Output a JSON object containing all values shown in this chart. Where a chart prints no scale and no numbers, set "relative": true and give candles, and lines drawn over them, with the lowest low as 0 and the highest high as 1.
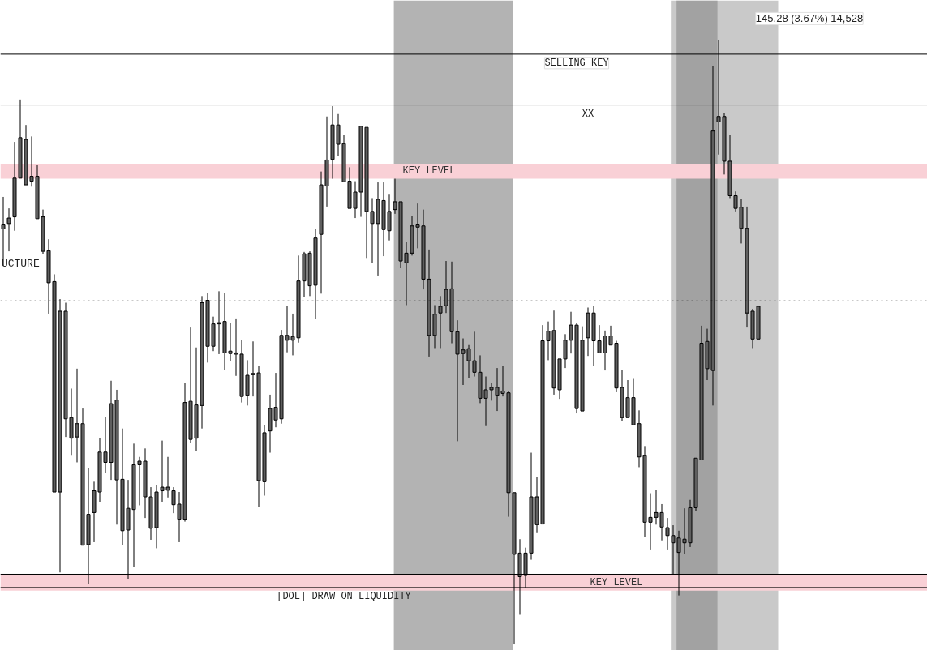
{
  "chart_data": {
    "type": "candlestick",
    "relative": true,
    "color": "#5f5f5f",
    "categories": [
      null,
      null,
      null,
      null,
      null,
      null,
      null,
      null,
      null,
      null,
      null,
      null,
      null,
      null,
      null,
      null,
      null,
      null,
      null,
      null,
      null,
      null,
      null,
      null,
      null,
      null,
      null,
      null,
      null,
      null,
      null,
      null,
      null,
      null,
      null,
      null,
      null,
      null,
      null,
      null,
      null,
      null,
      null,
      null,
      null,
      null,
      null,
      null,
      null,
      null,
      null,
      null,
      null,
      null,
      null,
      null,
      null,
      null,
      null,
      null,
      null,
      null,
      null,
      null,
      null,
      null,
      null,
      null,
      null,
      null,
      null,
      null,
      null,
      null,
      null,
      null,
      null,
      null,
      null,
      null,
      null,
      null,
      null,
      null,
      null,
      null,
      null,
      null,
      null,
      null,
      null,
      null,
      null,
      null,
      null,
      null,
      null,
      null,
      null,
      null,
      null,
      null,
      null,
      null,
      null,
      null,
      null,
      null,
      null,
      null,
      null,
      null,
      null,
      null,
      null,
      null,
      null,
      null,
      null,
      null,
      null,
      null,
      null,
      null,
      null,
      null,
      null,
      null,
      null,
      null,
      null,
      null,
      null,
      null
    ],
    "ohlc": [
      [
        0.695,
        0.74,
        0.626,
        0.687
      ],
      [
        0.705,
        0.721,
        0.65,
        0.696
      ],
      [
        0.771,
        0.831,
        0.684,
        0.707
      ],
      [
        0.838,
        0.901,
        0.771,
        0.771
      ],
      [
        0.835,
        0.859,
        0.758,
        0.76
      ],
      [
        0.774,
        0.84,
        0.757,
        0.766
      ],
      [
        0.774,
        0.793,
        0.703,
        0.704
      ],
      [
        0.707,
        0.719,
        0.646,
        0.65
      ],
      [
        0.651,
        0.67,
        0.547,
        0.598
      ],
      [
        0.6,
        0.612,
        0.251,
        0.252
      ],
      [
        0.551,
        0.571,
        0.119,
        0.252
      ],
      [
        0.551,
        0.565,
        0.343,
        0.373
      ],
      [
        0.375,
        0.423,
        0.312,
        0.341
      ],
      [
        0.365,
        0.456,
        0.301,
        0.343
      ],
      [
        0.365,
        0.39,
        0.164,
        0.164
      ],
      [
        0.215,
        0.291,
        0.1,
        0.165
      ],
      [
        0.254,
        0.269,
        0.169,
        0.218
      ],
      [
        0.318,
        0.341,
        0.235,
        0.252
      ],
      [
        0.318,
        0.376,
        0.283,
        0.301
      ],
      [
        0.398,
        0.436,
        0.272,
        0.301
      ],
      [
        0.404,
        0.421,
        0.198,
        0.272
      ],
      [
        0.273,
        0.357,
        0.164,
        0.188
      ],
      [
        0.225,
        0.272,
        0.108,
        0.189
      ],
      [
        0.297,
        0.332,
        0.128,
        0.223
      ],
      [
        0.303,
        0.31,
        0.23,
        0.297
      ],
      [
        0.303,
        0.324,
        0.209,
        0.244
      ],
      [
        0.244,
        0.26,
        0.173,
        0.192
      ],
      [
        0.252,
        0.264,
        0.159,
        0.193
      ],
      [
        0.26,
        0.337,
        0.236,
        0.254
      ],
      [
        0.26,
        0.31,
        0.243,
        0.255
      ],
      [
        0.254,
        0.26,
        0.217,
        0.231
      ],
      [
        0.232,
        0.252,
        0.169,
        0.207
      ],
      [
        0.4,
        0.433,
        0.203,
        0.207
      ],
      [
        0.402,
        0.524,
        0.333,
        0.339
      ],
      [
        0.396,
        0.491,
        0.32,
        0.341
      ],
      [
        0.565,
        0.576,
        0.357,
        0.395
      ],
      [
        0.569,
        0.581,
        0.466,
        0.493
      ],
      [
        0.53,
        0.542,
        0.485,
        0.493
      ],
      [
        0.532,
        0.584,
        0.48,
        0.53
      ],
      [
        0.534,
        0.581,
        0.454,
        0.482
      ],
      [
        0.485,
        0.531,
        0.469,
        0.481
      ],
      [
        0.482,
        0.539,
        0.444,
        0.48
      ],
      [
        0.48,
        0.503,
        0.4,
        0.41
      ],
      [
        0.445,
        0.47,
        0.395,
        0.412
      ],
      [
        0.448,
        0.501,
        0.41,
        0.446
      ],
      [
        0.449,
        0.461,
        0.227,
        0.271
      ],
      [
        0.35,
        0.362,
        0.246,
        0.269
      ],
      [
        0.39,
        0.413,
        0.317,
        0.353
      ],
      [
        0.392,
        0.449,
        0.359,
        0.371
      ],
      [
        0.511,
        0.52,
        0.365,
        0.373
      ],
      [
        0.511,
        0.56,
        0.483,
        0.503
      ],
      [
        0.509,
        0.547,
        0.478,
        0.503
      ],
      [
        0.601,
        0.643,
        0.499,
        0.507
      ],
      [
        0.646,
        0.649,
        0.575,
        0.601
      ],
      [
        0.647,
        0.65,
        0.576,
        0.593
      ],
      [
        0.672,
        0.687,
        0.538,
        0.594
      ],
      [
        0.76,
        0.782,
        0.58,
        0.678
      ],
      [
        0.801,
        0.873,
        0.724,
        0.758
      ],
      [
        0.859,
        0.89,
        0.77,
        0.802
      ],
      [
        0.859,
        0.877,
        0.808,
        0.827
      ],
      [
        0.828,
        0.843,
        0.764,
        0.765
      ],
      [
        0.766,
        0.789,
        0.72,
        0.721
      ],
      [
        0.748,
        0.766,
        0.705,
        0.721
      ],
      [
        0.857,
        0.859,
        0.707,
        0.748
      ],
      [
        0.855,
        0.856,
        0.639,
        0.716
      ],
      [
        0.716,
        0.738,
        0.631,
        0.696
      ],
      [
        0.736,
        0.764,
        0.61,
        0.696
      ],
      [
        0.734,
        0.764,
        0.642,
        0.686
      ],
      [
        0.716,
        0.745,
        0.668,
        0.684
      ],
      [
        0.732,
        0.77,
        0.712,
        0.719
      ],
      [
        0.732,
        0.732,
        0.622,
        0.634
      ],
      [
        0.647,
        0.666,
        0.561,
        0.631
      ],
      [
        0.692,
        0.708,
        0.643,
        0.647
      ],
      [
        0.695,
        0.729,
        0.655,
        0.69
      ],
      [
        0.692,
        0.719,
        0.587,
        0.604
      ],
      [
        0.604,
        0.653,
        0.476,
        0.511
      ],
      [
        0.546,
        0.561,
        0.49,
        0.511
      ],
      [
        0.559,
        0.576,
        0.49,
        0.548
      ],
      [
        0.587,
        0.634,
        0.548,
        0.56
      ],
      [
        0.588,
        0.633,
        0.498,
        0.517
      ],
      [
        0.517,
        0.536,
        0.336,
        0.48
      ],
      [
        0.487,
        0.506,
        0.429,
        0.481
      ],
      [
        0.489,
        0.495,
        0.44,
        0.469
      ],
      [
        0.469,
        0.517,
        0.443,
        0.45
      ],
      [
        0.45,
        0.478,
        0.399,
        0.407
      ],
      [
        0.421,
        0.443,
        0.361,
        0.407
      ],
      [
        0.425,
        0.433,
        0.403,
        0.421
      ],
      [
        0.425,
        0.457,
        0.386,
        0.412
      ],
      [
        0.419,
        0.46,
        0.41,
        0.415
      ],
      [
        0.416,
        0.419,
        0.211,
        0.251
      ],
      [
        0.251,
        0.252,
        0,
        0.149
      ],
      [
        0.151,
        0.174,
        0.049,
        0.112
      ],
      [
        0.151,
        0.16,
        0.094,
        0.114
      ],
      [
        0.244,
        0.317,
        0.14,
        0.151
      ],
      [
        0.244,
        0.277,
        0.184,
        0.198
      ],
      [
        0.502,
        0.528,
        0.198,
        0.199
      ],
      [
        0.518,
        0.534,
        0.47,
        0.502
      ],
      [
        0.519,
        0.552,
        0.413,
        0.424
      ],
      [
        0.472,
        0.472,
        0.406,
        0.421
      ],
      [
        0.503,
        0.513,
        0.457,
        0.472
      ],
      [
        0.528,
        0.55,
        0.481,
        0.503
      ],
      [
        0.528,
        0.531,
        0.382,
        0.39
      ],
      [
        0.503,
        0.526,
        0.386,
        0.386
      ],
      [
        0.548,
        0.557,
        0.477,
        0.507
      ],
      [
        0.548,
        0.56,
        0.461,
        0.502
      ],
      [
        0.502,
        0.528,
        0.482,
        0.482
      ],
      [
        0.51,
        0.519,
        0.453,
        0.482
      ],
      [
        0.51,
        0.527,
        0.495,
        0.495
      ],
      [
        0.498,
        0.502,
        0.417,
        0.424
      ],
      [
        0.425,
        0.454,
        0.37,
        0.375
      ],
      [
        0.408,
        0.437,
        0.375,
        0.375
      ],
      [
        0.408,
        0.439,
        0.363,
        0.363
      ],
      [
        0.365,
        0.387,
        0.293,
        0.31
      ],
      [
        0.312,
        0.328,
        0.178,
        0.202
      ],
      [
        0.21,
        0.25,
        0.157,
        0.202
      ],
      [
        0.218,
        0.255,
        0.198,
        0.21
      ],
      [
        0.218,
        0.232,
        0.172,
        0.194
      ],
      [
        0.193,
        0.209,
        0.157,
        0.18
      ],
      [
        0.18,
        0.197,
        0.115,
        0.168
      ],
      [
        0.176,
        0.188,
        0.081,
        0.152
      ],
      [
        0.174,
        0.225,
        0.149,
        0.168
      ],
      [
        0.226,
        0.239,
        0.161,
        0.168
      ],
      [
        0.308,
        0.308,
        0.221,
        0.226
      ],
      [
        0.498,
        0.527,
        0.305,
        0.305
      ],
      [
        0.501,
        0.522,
        0.437,
        0.456
      ],
      [
        0.849,
        0.956,
        0.395,
        0.453
      ],
      [
        0.873,
        1.0,
        0.81,
        0.864
      ],
      [
        0.873,
        0.878,
        0.777,
        0.799
      ],
      [
        0.799,
        0.843,
        0.738,
        0.742
      ],
      [
        0.742,
        0.749,
        0.716,
        0.721
      ],
      [
        0.723,
        0.737,
        0.663,
        0.688
      ],
      [
        0.688,
        0.724,
        0.524,
        0.548
      ],
      [
        0.551,
        0.555,
        0.49,
        0.505
      ],
      [
        0.559,
        0.559,
        0.505,
        0.505
      ]
    ],
    "ref_lines": [
      {
        "axis": "y",
        "value": 0.976,
        "label": "SELLING KEY",
        "color": "#000000",
        "line_style": "solid"
      },
      {
        "axis": "y",
        "value": 0.892,
        "label": "XX",
        "color": "#000000",
        "line_style": "solid"
      },
      {
        "axis": "y",
        "value": 0.568,
        "label": null,
        "color": "#000000",
        "line_style": "dotted"
      },
      {
        "axis": "y",
        "value": 0.094,
        "label": "[DOL] DRAW ON LIQUIDITY",
        "color": "#000000",
        "line_style": "solid"
      },
      {
        "axis": "y",
        "value": 0.116,
        "label": null,
        "color": "#000000",
        "line_style": "solid"
      }
    ],
    "bands": [
      {
        "axis": "y",
        "from": 0.77,
        "to": 0.795,
        "label": "KEY LEVEL",
        "color": "#f9d0d6"
      },
      {
        "axis": "y",
        "from": 0.089,
        "to": 0.116,
        "label": "KEY LEVEL",
        "color": "#f9d0d6"
      }
    ],
    "annotations": [
      "UCTURE",
      "145.28 (3.67%) 14,528"
    ],
    "grid": false,
    "tick_labels": false
  }
}
